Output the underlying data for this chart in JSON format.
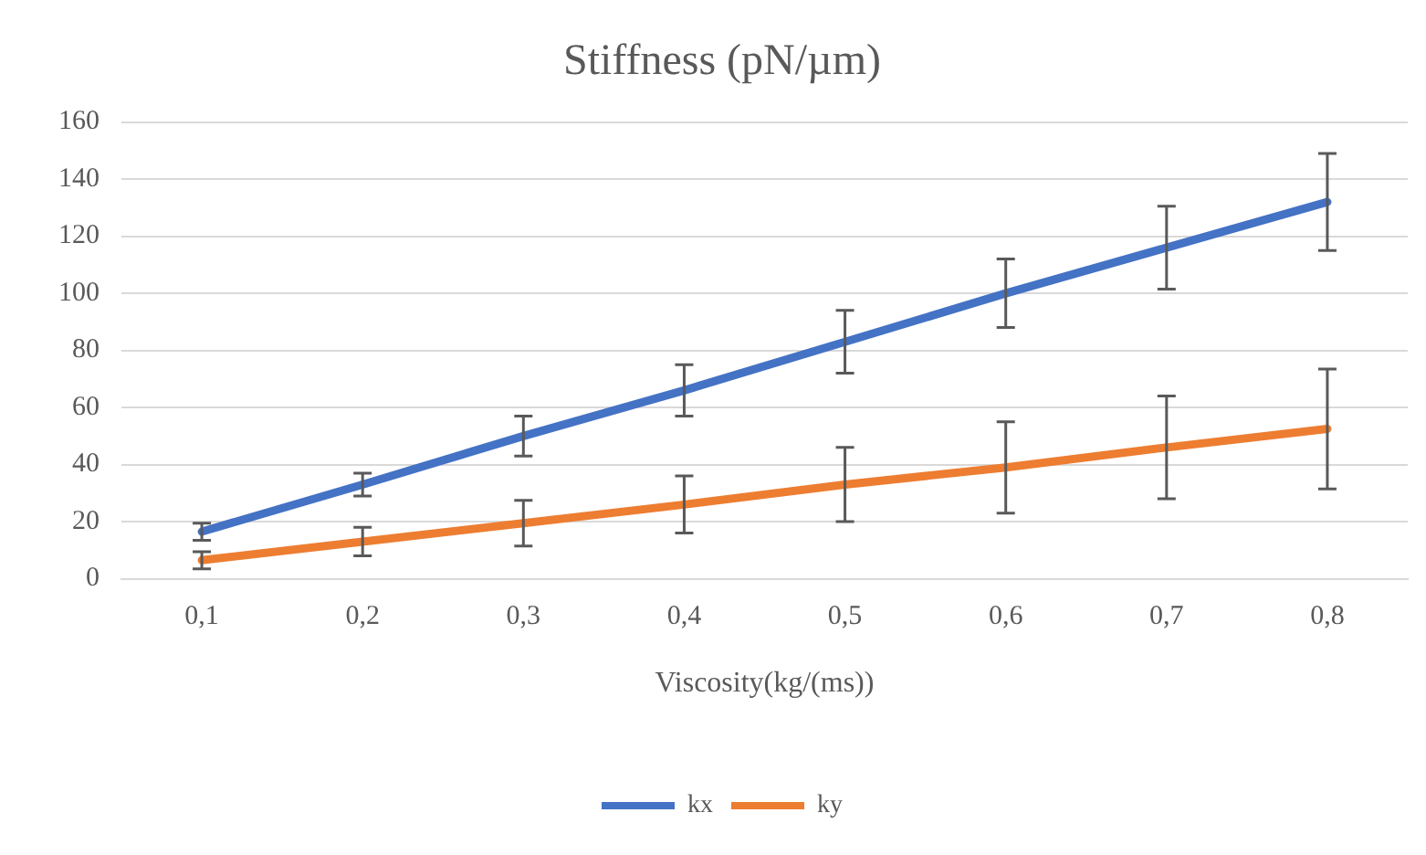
{
  "chart_data": {
    "type": "line",
    "title": "Stiffness (pN/µm)",
    "xlabel": "Viscosity(kg/(ms))",
    "categories": [
      "0,1",
      "0,2",
      "0,3",
      "0,4",
      "0,5",
      "0,6",
      "0,7",
      "0,8"
    ],
    "series": [
      {
        "name": "kx",
        "color": "#4472c4",
        "values": [
          16.5,
          33,
          50,
          66,
          83,
          100,
          116,
          132
        ],
        "errors": [
          3,
          4,
          7,
          9,
          11,
          12,
          14.5,
          17
        ]
      },
      {
        "name": "ky",
        "color": "#ed7d31",
        "values": [
          6.5,
          13,
          19.5,
          26,
          33,
          39,
          46,
          52.5
        ],
        "errors": [
          3,
          5,
          8,
          10,
          13,
          16,
          18,
          21
        ]
      }
    ],
    "ylim": [
      0,
      160
    ],
    "yticks": [
      0,
      20,
      40,
      60,
      80,
      100,
      120,
      140,
      160
    ],
    "grid": "y",
    "legend": "bottom",
    "marker": "none",
    "line_style": "solid"
  }
}
